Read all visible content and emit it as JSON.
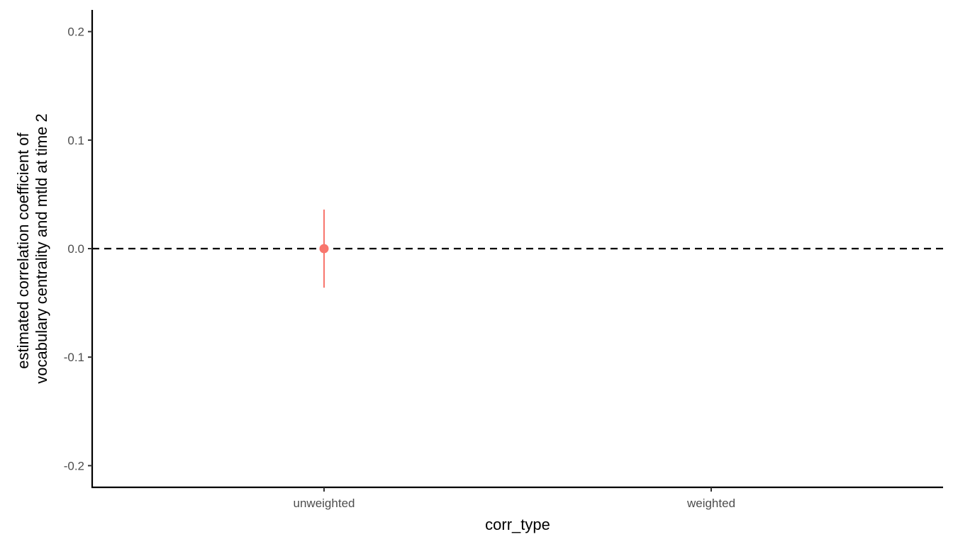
{
  "chart_data": {
    "type": "scatter",
    "xlabel": "corr_type",
    "ylabel": [
      "estimated correlation coefficient of",
      "vocabulary centrality and mtld at time 2"
    ],
    "categories": [
      "unweighted",
      "weighted"
    ],
    "ylim": [
      -0.22,
      0.22
    ],
    "yticks": [
      {
        "value": 0.2,
        "label": "0.2"
      },
      {
        "value": 0.1,
        "label": "0.1"
      },
      {
        "value": 0.0,
        "label": "0.0"
      },
      {
        "value": -0.1,
        "label": "-0.1"
      },
      {
        "value": -0.2,
        "label": "-0.2"
      }
    ],
    "points": [
      {
        "category": "unweighted",
        "y": 0.0,
        "ymin": -0.036,
        "ymax": 0.036
      }
    ],
    "reference_line": {
      "y": 0.0,
      "style": "dashed"
    },
    "grid": false,
    "legend": "none",
    "colors": {
      "point": "#F8766D",
      "axis": "#000000",
      "tick_text": "#4d4d4d"
    }
  }
}
